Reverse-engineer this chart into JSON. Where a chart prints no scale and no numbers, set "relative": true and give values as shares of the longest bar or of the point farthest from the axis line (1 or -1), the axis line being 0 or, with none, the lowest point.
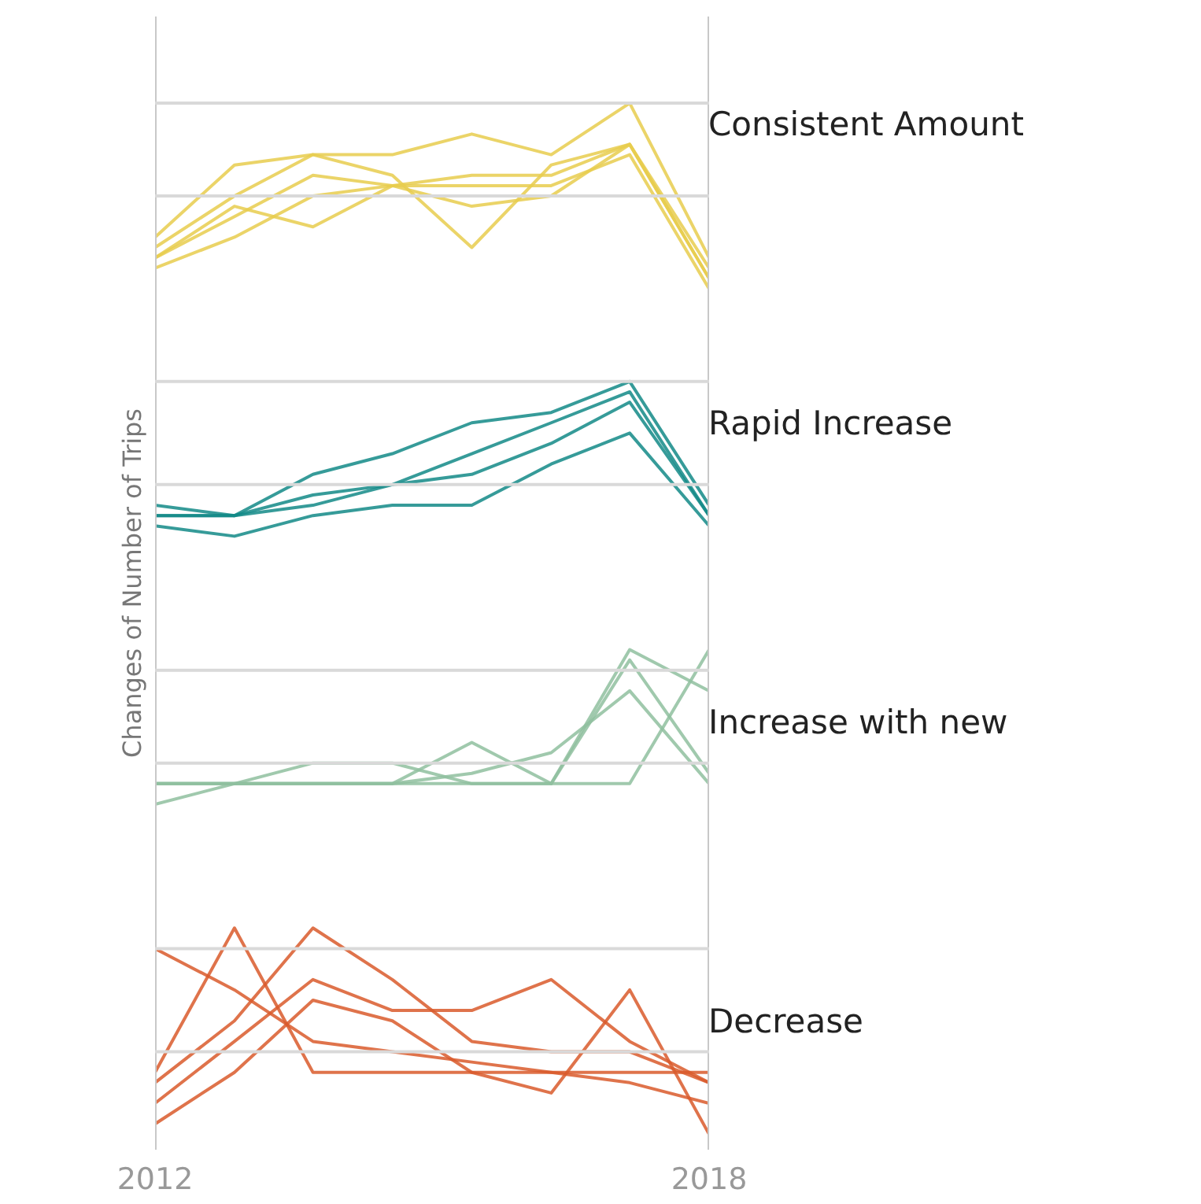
{
  "chart_data": {
    "type": "line",
    "relative": true,
    "ylabel": "Changes of Number of Trips",
    "x": [
      2012,
      2012.86,
      2013.71,
      2014.57,
      2015.43,
      2016.29,
      2017.14,
      2018
    ],
    "xlim": [
      2012,
      2018
    ],
    "xticks": [
      2012,
      2018
    ],
    "grid": "x",
    "legend": "right",
    "ref_lines": [
      {
        "axis": "y",
        "value": 1.0,
        "color": "#d9d9d9"
      },
      {
        "axis": "y",
        "value": 0.91,
        "color": "#d9d9d9"
      },
      {
        "axis": "y",
        "value": 0.73,
        "color": "#d9d9d9"
      },
      {
        "axis": "y",
        "value": 0.63,
        "color": "#d9d9d9"
      },
      {
        "axis": "y",
        "value": 0.45,
        "color": "#d9d9d9"
      },
      {
        "axis": "y",
        "value": 0.36,
        "color": "#d9d9d9"
      },
      {
        "axis": "y",
        "value": 0.18,
        "color": "#d9d9d9"
      },
      {
        "axis": "y",
        "value": 0.08,
        "color": "#d9d9d9"
      }
    ],
    "series": [
      {
        "name": "Consistent Amount",
        "color": "#e8cc4e",
        "values": [
          0.87,
          0.94,
          0.95,
          0.95,
          0.97,
          0.95,
          1.0,
          0.85
        ]
      },
      {
        "color": "#e8cc4e",
        "values": [
          0.85,
          0.89,
          0.93,
          0.92,
          0.93,
          0.93,
          0.96,
          0.83
        ]
      },
      {
        "color": "#e8cc4e",
        "values": [
          0.84,
          0.87,
          0.91,
          0.92,
          0.92,
          0.92,
          0.95,
          0.82
        ]
      },
      {
        "color": "#e8cc4e",
        "values": [
          0.86,
          0.91,
          0.95,
          0.93,
          0.86,
          0.94,
          0.96,
          0.83
        ]
      },
      {
        "color": "#e8cc4e",
        "values": [
          0.85,
          0.9,
          0.88,
          0.92,
          0.9,
          0.91,
          0.96,
          0.84
        ]
      },
      {
        "name": "Rapid Increase",
        "color": "#138a87",
        "values": [
          0.61,
          0.6,
          0.64,
          0.66,
          0.69,
          0.7,
          0.73,
          0.61
        ]
      },
      {
        "color": "#138a87",
        "values": [
          0.6,
          0.6,
          0.61,
          0.63,
          0.66,
          0.69,
          0.72,
          0.6
        ]
      },
      {
        "color": "#138a87",
        "values": [
          0.59,
          0.58,
          0.6,
          0.61,
          0.61,
          0.65,
          0.68,
          0.59
        ]
      },
      {
        "color": "#138a87",
        "values": [
          0.6,
          0.6,
          0.62,
          0.63,
          0.64,
          0.67,
          0.71,
          0.6
        ]
      },
      {
        "name": "Increase with new",
        "color": "#8fbf9f",
        "values": [
          0.34,
          0.34,
          0.36,
          0.36,
          0.34,
          0.34,
          0.47,
          0.43
        ]
      },
      {
        "color": "#8fbf9f",
        "values": [
          0.32,
          0.34,
          0.34,
          0.34,
          0.38,
          0.34,
          0.46,
          0.35
        ]
      },
      {
        "color": "#8fbf9f",
        "values": [
          0.34,
          0.34,
          0.34,
          0.34,
          0.34,
          0.34,
          0.34,
          0.47
        ]
      },
      {
        "color": "#8fbf9f",
        "values": [
          0.34,
          0.34,
          0.34,
          0.34,
          0.35,
          0.37,
          0.43,
          0.34
        ]
      },
      {
        "name": "Decrease",
        "color": "#d95a2b",
        "values": [
          0.18,
          0.14,
          0.09,
          0.08,
          0.07,
          0.06,
          0.05,
          0.03
        ]
      },
      {
        "color": "#d95a2b",
        "values": [
          0.06,
          0.2,
          0.06,
          0.06,
          0.06,
          0.06,
          0.06,
          0.06
        ]
      },
      {
        "color": "#d95a2b",
        "values": [
          0.05,
          0.11,
          0.2,
          0.15,
          0.09,
          0.08,
          0.08,
          0.05
        ]
      },
      {
        "color": "#d95a2b",
        "values": [
          0.03,
          0.09,
          0.15,
          0.12,
          0.12,
          0.15,
          0.09,
          0.05
        ]
      },
      {
        "color": "#d95a2b",
        "values": [
          0.01,
          0.06,
          0.13,
          0.11,
          0.06,
          0.04,
          0.14,
          0.0
        ]
      }
    ]
  }
}
